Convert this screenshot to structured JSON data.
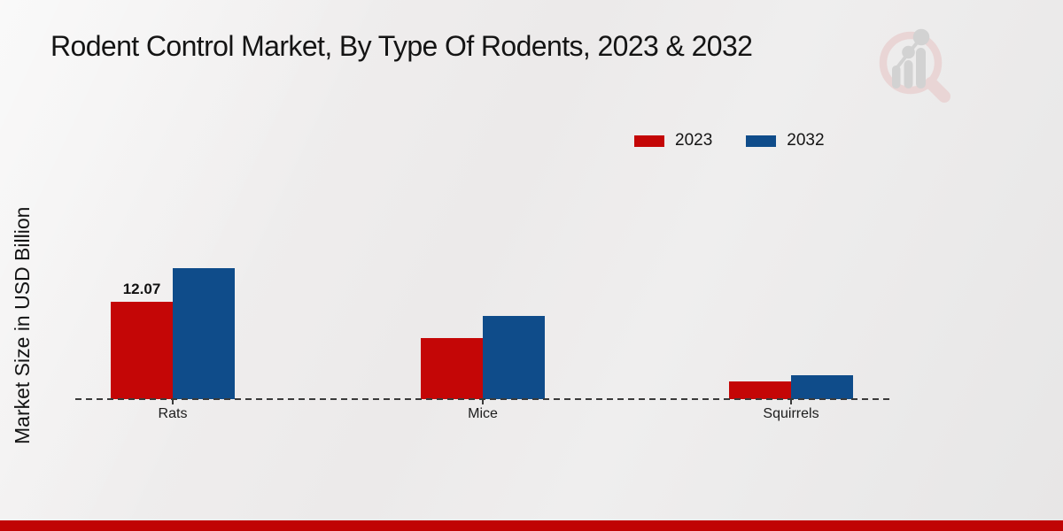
{
  "page": {
    "footer_bar_color": "#c00404"
  },
  "watermark": {
    "name": "magnifier-bar-chart-logo",
    "ring_color": "#e9d5d5",
    "bars_color": "#d2d2d2"
  },
  "chart_data": {
    "type": "bar",
    "title": "Rodent Control Market, By Type Of Rodents, 2023 & 2032",
    "ylabel": "Market Size in USD Billion",
    "xlabel": "",
    "units": "USD Billion",
    "categories": [
      "Rats",
      "Mice",
      "Squirrels"
    ],
    "series": [
      {
        "name": "2023",
        "color": "#c40606",
        "values": [
          12.07,
          7.6,
          2.2
        ]
      },
      {
        "name": "2032",
        "color": "#0f4c8a",
        "values": [
          16.2,
          10.3,
          3.0
        ]
      }
    ],
    "bar_value_labels": [
      [
        "12.07",
        "",
        ""
      ],
      [
        "",
        "",
        ""
      ]
    ],
    "ylim": [
      0,
      18
    ],
    "grid": false,
    "legend_position": "top-right",
    "baseline_style": "dashed"
  }
}
